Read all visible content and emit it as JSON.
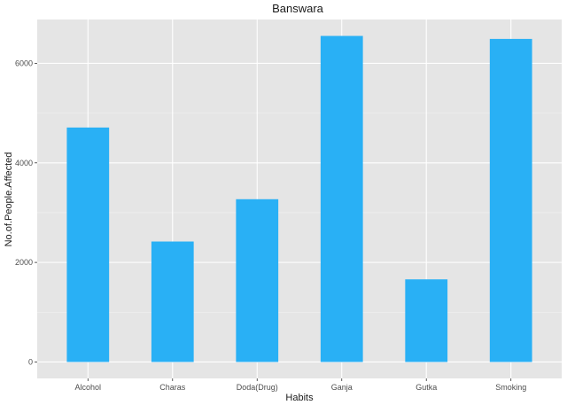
{
  "chart_data": {
    "type": "bar",
    "title": "Banswara",
    "xlabel": "Habits",
    "ylabel": "No.of.People.Affected",
    "categories": [
      "Alcohol",
      "Charas",
      "Doda(Drug)",
      "Ganja",
      "Gutka",
      "Smoking"
    ],
    "values": [
      4710,
      2420,
      3270,
      6550,
      1660,
      6490
    ],
    "ylim": [
      -330,
      6880
    ],
    "yticks": [
      0,
      2000,
      4000,
      6000
    ],
    "ytick_labels": [
      "0",
      "2000",
      "4000",
      "6000"
    ],
    "grid": true,
    "legend": "none",
    "colors": {
      "bar": "#29B0F5",
      "panel": "#E5E5E5",
      "grid_major": "#FFFFFF",
      "grid_minor": "#F0F0F0"
    }
  }
}
